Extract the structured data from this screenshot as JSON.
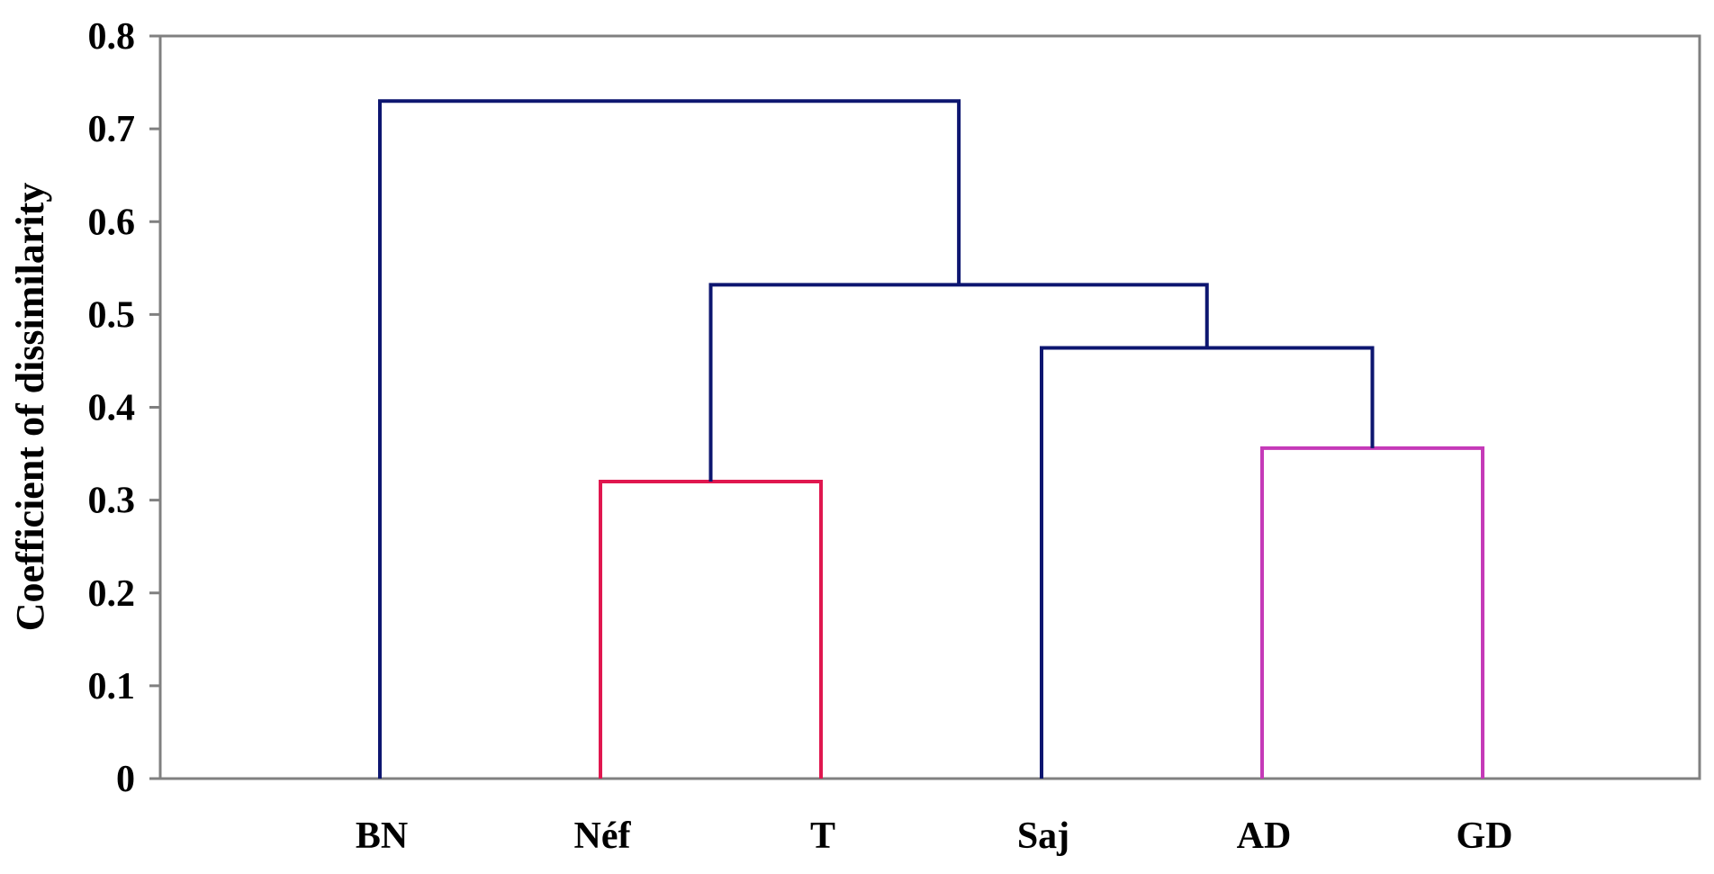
{
  "chart_data": {
    "type": "dendrogram",
    "ylabel": "Coefficient of dissimilarity",
    "ylim": [
      0,
      0.8
    ],
    "yticks": [
      "0",
      "0.1",
      "0.2",
      "0.3",
      "0.4",
      "0.5",
      "0.6",
      "0.7",
      "0.8"
    ],
    "leaves": [
      "BN",
      "Néf",
      "T",
      "Saj",
      "AD",
      "GD"
    ],
    "merges": [
      {
        "left": "Néf",
        "right": "T",
        "height": 0.32,
        "color": "#e0174f"
      },
      {
        "left": "AD",
        "right": "GD",
        "height": 0.356,
        "color": "#c53ab8"
      },
      {
        "left": "Saj",
        "right": "AD+GD",
        "height": 0.464,
        "color": "#0d1670"
      },
      {
        "left": "Néf+T",
        "right": "Saj+AD+GD",
        "height": 0.532,
        "color": "#0d1670"
      },
      {
        "left": "BN",
        "right": "Néf+T+Saj+AD+GD",
        "height": 0.73,
        "color": "#0d1670"
      }
    ],
    "grid": false,
    "legend": "none"
  }
}
